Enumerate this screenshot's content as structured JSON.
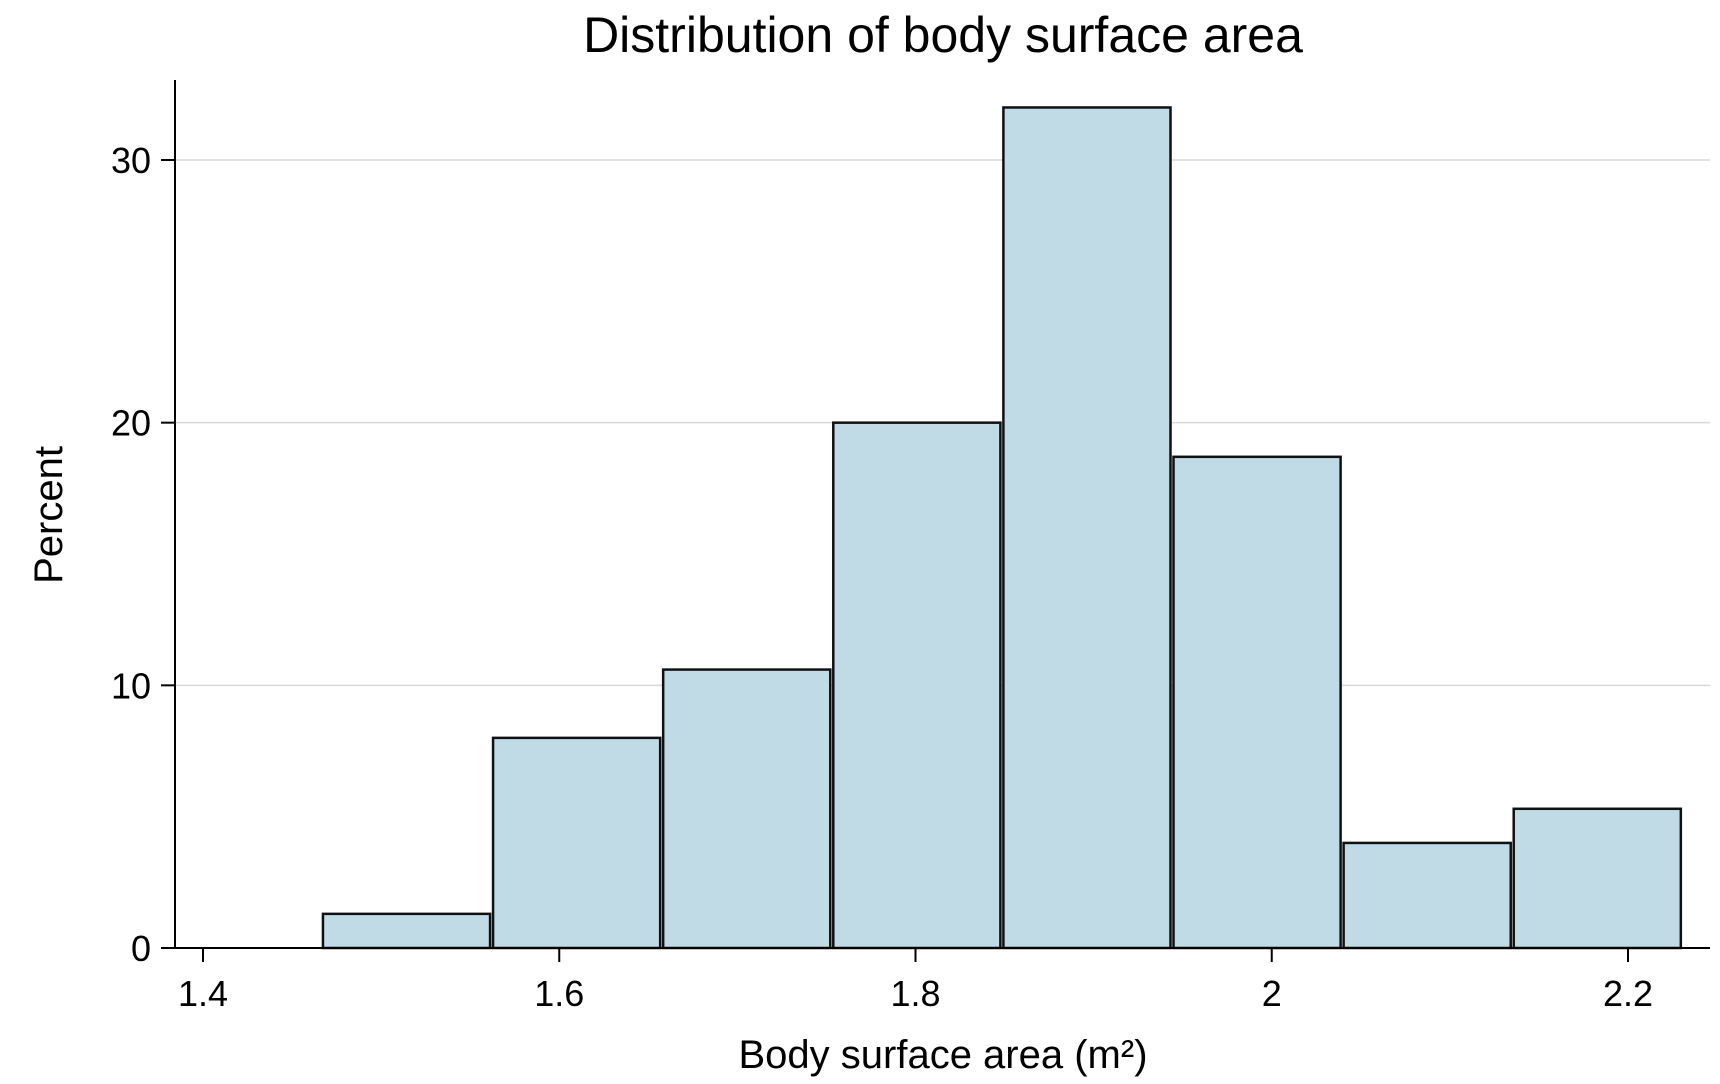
{
  "chart_data": {
    "type": "bar",
    "title": "Distribution of body surface area",
    "xlabel": "Body surface area (m²)",
    "ylabel": "Percent",
    "xlim": [
      1.4,
      2.24
    ],
    "ylim": [
      0,
      32.5
    ],
    "xticks": [
      1.4,
      1.6,
      1.8,
      2,
      2.2
    ],
    "xtick_labels": [
      "1.4",
      "1.6",
      "1.8",
      "2",
      "2.2"
    ],
    "yticks": [
      0,
      10,
      20,
      30
    ],
    "ytick_labels": [
      "0",
      "10",
      "20",
      "30"
    ],
    "grid": "horizontal",
    "legend": "none",
    "bar_color": "#c0dae6",
    "bin_width": 0.0955,
    "bins": [
      {
        "start": 1.4665,
        "value": 1.3
      },
      {
        "start": 1.562,
        "value": 8.0
      },
      {
        "start": 1.6575,
        "value": 10.6
      },
      {
        "start": 1.753,
        "value": 20.0
      },
      {
        "start": 1.8485,
        "value": 32.0
      },
      {
        "start": 1.944,
        "value": 18.7
      },
      {
        "start": 2.0395,
        "value": 4.0
      },
      {
        "start": 2.135,
        "value": 5.3
      }
    ]
  }
}
